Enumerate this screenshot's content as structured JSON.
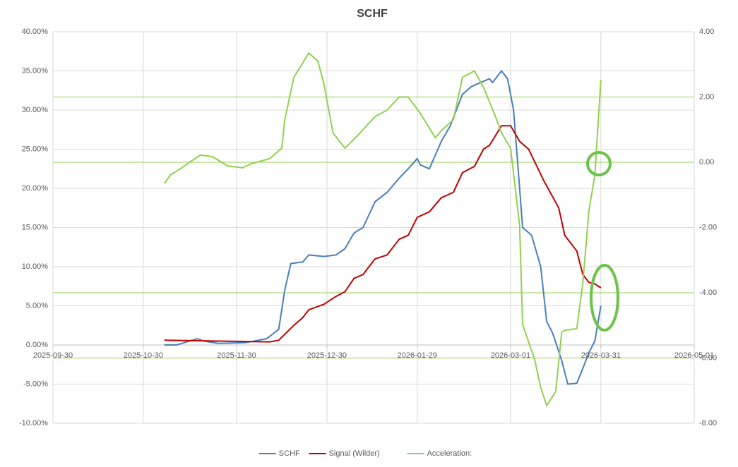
{
  "chart_data": {
    "type": "line",
    "title": "SCHF",
    "xlim": [
      "2025-09-30",
      "2026-05-01"
    ],
    "xticks": [
      "2025-09-30",
      "2025-10-30",
      "2025-11-30",
      "2025-12-30",
      "2026-01-29",
      "2026-03-01",
      "2026-03-31",
      "2026-05-01"
    ],
    "ylim": [
      -10,
      40
    ],
    "yticks": [
      {
        "value": -10,
        "label": "-10.00%"
      },
      {
        "value": -5,
        "label": "-5.00%"
      },
      {
        "value": 0,
        "label": "0.00%"
      },
      {
        "value": 5,
        "label": "5.00%"
      },
      {
        "value": 10,
        "label": "10.00%"
      },
      {
        "value": 15,
        "label": "15.00%"
      },
      {
        "value": 20,
        "label": "20.00%"
      },
      {
        "value": 25,
        "label": "25.00%"
      },
      {
        "value": 30,
        "label": "30.00%"
      },
      {
        "value": 35,
        "label": "35.00%"
      },
      {
        "value": 40,
        "label": "40.00%"
      }
    ],
    "y2lim": [
      -8,
      4
    ],
    "y2ticks": [
      {
        "value": -8,
        "label": "-8.00"
      },
      {
        "value": -6,
        "label": "-6.00"
      },
      {
        "value": -4,
        "label": "-4.00"
      },
      {
        "value": -2,
        "label": "-2.00"
      },
      {
        "value": 0,
        "label": "0.00"
      },
      {
        "value": 2,
        "label": "2.00"
      },
      {
        "value": 4,
        "label": "4.00"
      }
    ],
    "grid": true,
    "legend": "bottom",
    "y2_reference_lines": [
      2,
      0,
      -4,
      -6
    ],
    "reference_color": "#92d050",
    "series": [
      {
        "name": "SCHF",
        "color": "#4a7ebb",
        "x": [
          "2025-11-06",
          "2025-11-10",
          "2025-11-17",
          "2025-11-19",
          "2025-11-24",
          "2025-12-03",
          "2025-12-10",
          "2025-12-14",
          "2025-12-16",
          "2025-12-18",
          "2025-12-22",
          "2025-12-24",
          "2025-12-29",
          "2026-01-02",
          "2026-01-05",
          "2026-01-08",
          "2026-01-11",
          "2026-01-15",
          "2026-01-19",
          "2026-01-23",
          "2026-01-26",
          "2026-01-29",
          "2026-01-30",
          "2026-02-02",
          "2026-02-06",
          "2026-02-09",
          "2026-02-13",
          "2026-02-16",
          "2026-02-22",
          "2026-02-23",
          "2026-02-26",
          "2026-02-28",
          "2026-03-02",
          "2026-03-04",
          "2026-03-05",
          "2026-03-08",
          "2026-03-11",
          "2026-03-13",
          "2026-03-15",
          "2026-03-18",
          "2026-03-20",
          "2026-03-23",
          "2026-03-25",
          "2026-03-27",
          "2026-03-29",
          "2026-03-31"
        ],
        "values": [
          0,
          0,
          0.8,
          0.5,
          0.2,
          0.3,
          0.8,
          2,
          7,
          10.4,
          10.6,
          11.5,
          11.3,
          11.5,
          12.3,
          14.3,
          15,
          18.3,
          19.5,
          21.3,
          22.5,
          23.8,
          23,
          22.5,
          26,
          28,
          32,
          33,
          34,
          33.5,
          35,
          34,
          30,
          20,
          15,
          14,
          10,
          3,
          1.5,
          -2,
          -5,
          -4.9,
          -3,
          -1,
          0.5,
          5
        ]
      },
      {
        "name": "Signal (Wilder)",
        "color": "#c00000",
        "x": [
          "2025-11-06",
          "2025-11-22",
          "2025-12-11",
          "2025-12-14",
          "2025-12-19",
          "2025-12-22",
          "2025-12-24",
          "2025-12-29",
          "2026-01-02",
          "2026-01-05",
          "2026-01-08",
          "2026-01-11",
          "2026-01-15",
          "2026-01-19",
          "2026-01-23",
          "2026-01-26",
          "2026-01-29",
          "2026-02-02",
          "2026-02-06",
          "2026-02-10",
          "2026-02-13",
          "2026-02-17",
          "2026-02-20",
          "2026-02-22",
          "2026-02-26",
          "2026-03-01",
          "2026-03-04",
          "2026-03-07",
          "2026-03-12",
          "2026-03-17",
          "2026-03-19",
          "2026-03-23",
          "2026-03-25",
          "2026-03-27",
          "2026-03-29",
          "2026-03-31"
        ],
        "values": [
          0.6,
          0.5,
          0.4,
          0.6,
          2.5,
          3.5,
          4.5,
          5.2,
          6.2,
          6.8,
          8.5,
          9,
          11,
          11.5,
          13.5,
          14,
          16.3,
          17,
          18.8,
          19.5,
          22,
          22.8,
          25,
          25.5,
          28,
          28,
          26,
          25,
          21,
          17.5,
          14,
          12,
          9,
          8,
          7.8,
          7.3
        ]
      },
      {
        "name": "Acceleration:",
        "color": "#92d050",
        "axis": "y2",
        "x": [
          "2025-11-06",
          "2025-11-08",
          "2025-11-11",
          "2025-11-15",
          "2025-11-18",
          "2025-11-22",
          "2025-11-27",
          "2025-12-02",
          "2025-12-05",
          "2025-12-11",
          "2025-12-15",
          "2025-12-16",
          "2025-12-19",
          "2025-12-21",
          "2025-12-24",
          "2025-12-27",
          "2025-12-29",
          "2026-01-01",
          "2026-01-05",
          "2026-01-09",
          "2026-01-12",
          "2026-01-15",
          "2026-01-19",
          "2026-01-23",
          "2026-01-26",
          "2026-01-30",
          "2026-02-04",
          "2026-02-06",
          "2026-02-10",
          "2026-02-13",
          "2026-02-17",
          "2026-02-20",
          "2026-02-24",
          "2026-02-26",
          "2026-03-01",
          "2026-03-04",
          "2026-03-05",
          "2026-03-09",
          "2026-03-11",
          "2026-03-13",
          "2026-03-16",
          "2026-03-18",
          "2026-03-19",
          "2026-03-23",
          "2026-03-25",
          "2026-03-27",
          "2026-03-29",
          "2026-03-31"
        ],
        "values": [
          -0.65,
          -0.39,
          -0.22,
          0.04,
          0.22,
          0.17,
          -0.11,
          -0.17,
          -0.04,
          0.11,
          0.43,
          1.3,
          2.6,
          2.9,
          3.35,
          3.1,
          2.4,
          0.9,
          0.43,
          0.8,
          1.1,
          1.4,
          1.6,
          2,
          2,
          1.5,
          0.75,
          0.97,
          1.3,
          2.6,
          2.8,
          2.3,
          1.4,
          0.9,
          0.43,
          -1.95,
          -4.97,
          -6.05,
          -6.9,
          -7.46,
          -7.03,
          -5.2,
          -5.15,
          -5.1,
          -3.7,
          -1.5,
          -0.4,
          2.53
        ]
      }
    ]
  }
}
